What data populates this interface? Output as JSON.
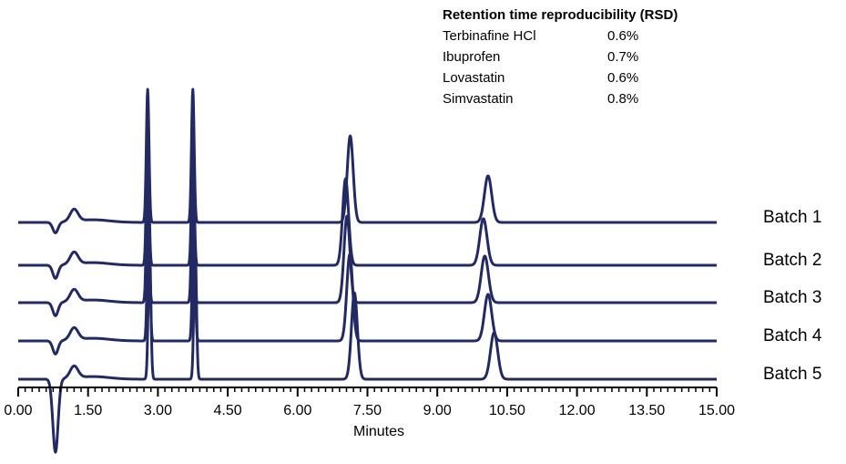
{
  "colors": {
    "trace": "#232a63",
    "axis": "#000000"
  },
  "rsd_table": {
    "title": "Retention time reproducibility (RSD)",
    "rows": [
      {
        "compound": "Terbinafine HCl",
        "rsd": "0.6%"
      },
      {
        "compound": "Ibuprofen",
        "rsd": "0.7%"
      },
      {
        "compound": "Lovastatin",
        "rsd": "0.6%"
      },
      {
        "compound": "Simvastatin",
        "rsd": "0.8%"
      }
    ]
  },
  "chart_data": {
    "type": "line",
    "xlabel": "Minutes",
    "ylabel": "",
    "xlim": [
      0,
      15
    ],
    "tick_labels": [
      "0.00",
      "1.50",
      "3.00",
      "4.50",
      "6.00",
      "7.50",
      "9.00",
      "10.50",
      "12.00",
      "13.50",
      "15.00"
    ],
    "series": [
      {
        "name": "Batch 1",
        "dip_depth": 0.08,
        "peaks": [
          [
            2.78,
            1.0
          ],
          [
            3.75,
            1.0
          ],
          [
            7.13,
            0.65
          ],
          [
            10.09,
            0.35
          ]
        ]
      },
      {
        "name": "Batch 2",
        "dip_depth": 0.1,
        "peaks": [
          [
            2.78,
            1.0
          ],
          [
            3.75,
            1.0
          ],
          [
            7.03,
            0.65
          ],
          [
            9.99,
            0.35
          ]
        ]
      },
      {
        "name": "Batch 3",
        "dip_depth": 0.1,
        "peaks": [
          [
            2.78,
            1.0
          ],
          [
            3.75,
            1.0
          ],
          [
            7.06,
            0.65
          ],
          [
            10.02,
            0.35
          ]
        ]
      },
      {
        "name": "Batch 4",
        "dip_depth": 0.1,
        "peaks": [
          [
            2.8,
            1.0
          ],
          [
            3.77,
            1.0
          ],
          [
            7.12,
            0.65
          ],
          [
            10.09,
            0.35
          ]
        ]
      },
      {
        "name": "Batch 5",
        "dip_depth": 0.55,
        "peaks": [
          [
            2.82,
            1.0
          ],
          [
            3.8,
            1.0
          ],
          [
            7.22,
            0.65
          ],
          [
            10.22,
            0.35
          ]
        ]
      }
    ]
  }
}
